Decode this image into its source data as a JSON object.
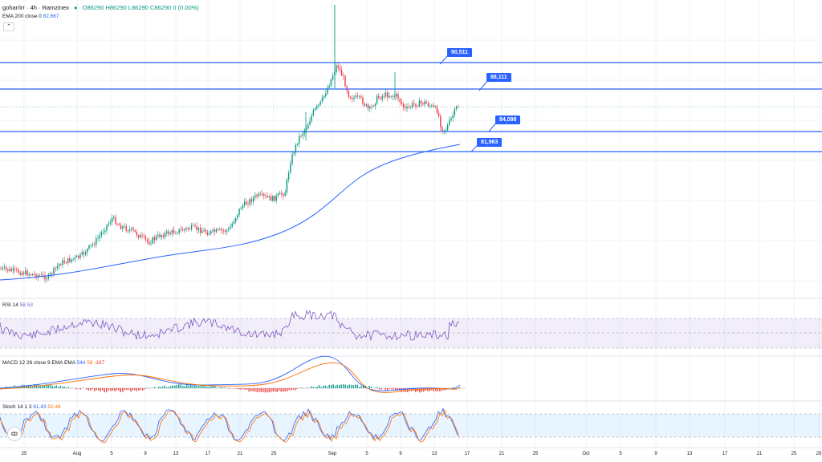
{
  "header": {
    "symbol_line": "gohar/irr · 4h · Ramzinex",
    "status_dot_color": "#089981",
    "ohlc": "O86290 H86290 L86290 C86290 0 (0.00%)"
  },
  "ema": {
    "label": "EMA 200 close 0",
    "value": "82,667"
  },
  "collapse_icon": "chevron-up-icon",
  "price_levels": [
    {
      "label": "90,511"
    },
    {
      "label": "88,111"
    },
    {
      "label": "84,098"
    },
    {
      "label": "81,963"
    }
  ],
  "indicators": {
    "rsi": {
      "name": "RSI 14",
      "value": "58.53"
    },
    "macd": {
      "name": "MACD 12 26 close 9 EMA EMA",
      "v1": "544",
      "v2": "58",
      "v3": "-167"
    },
    "stoch": {
      "name": "Stoch 14 1 3",
      "v1": "61.43",
      "v2": "92.44"
    }
  },
  "x_axis": [
    "25",
    "Aug",
    "5",
    "9",
    "13",
    "17",
    "21",
    "25",
    "Sep",
    "5",
    "9",
    "13",
    "17",
    "21",
    "25",
    "Oct",
    "5",
    "9",
    "13",
    "17",
    "21",
    "25",
    "29"
  ],
  "colors": {
    "up": "#089981",
    "down": "#f23645",
    "level": "#2962ff",
    "ema": "#2962ff"
  }
}
